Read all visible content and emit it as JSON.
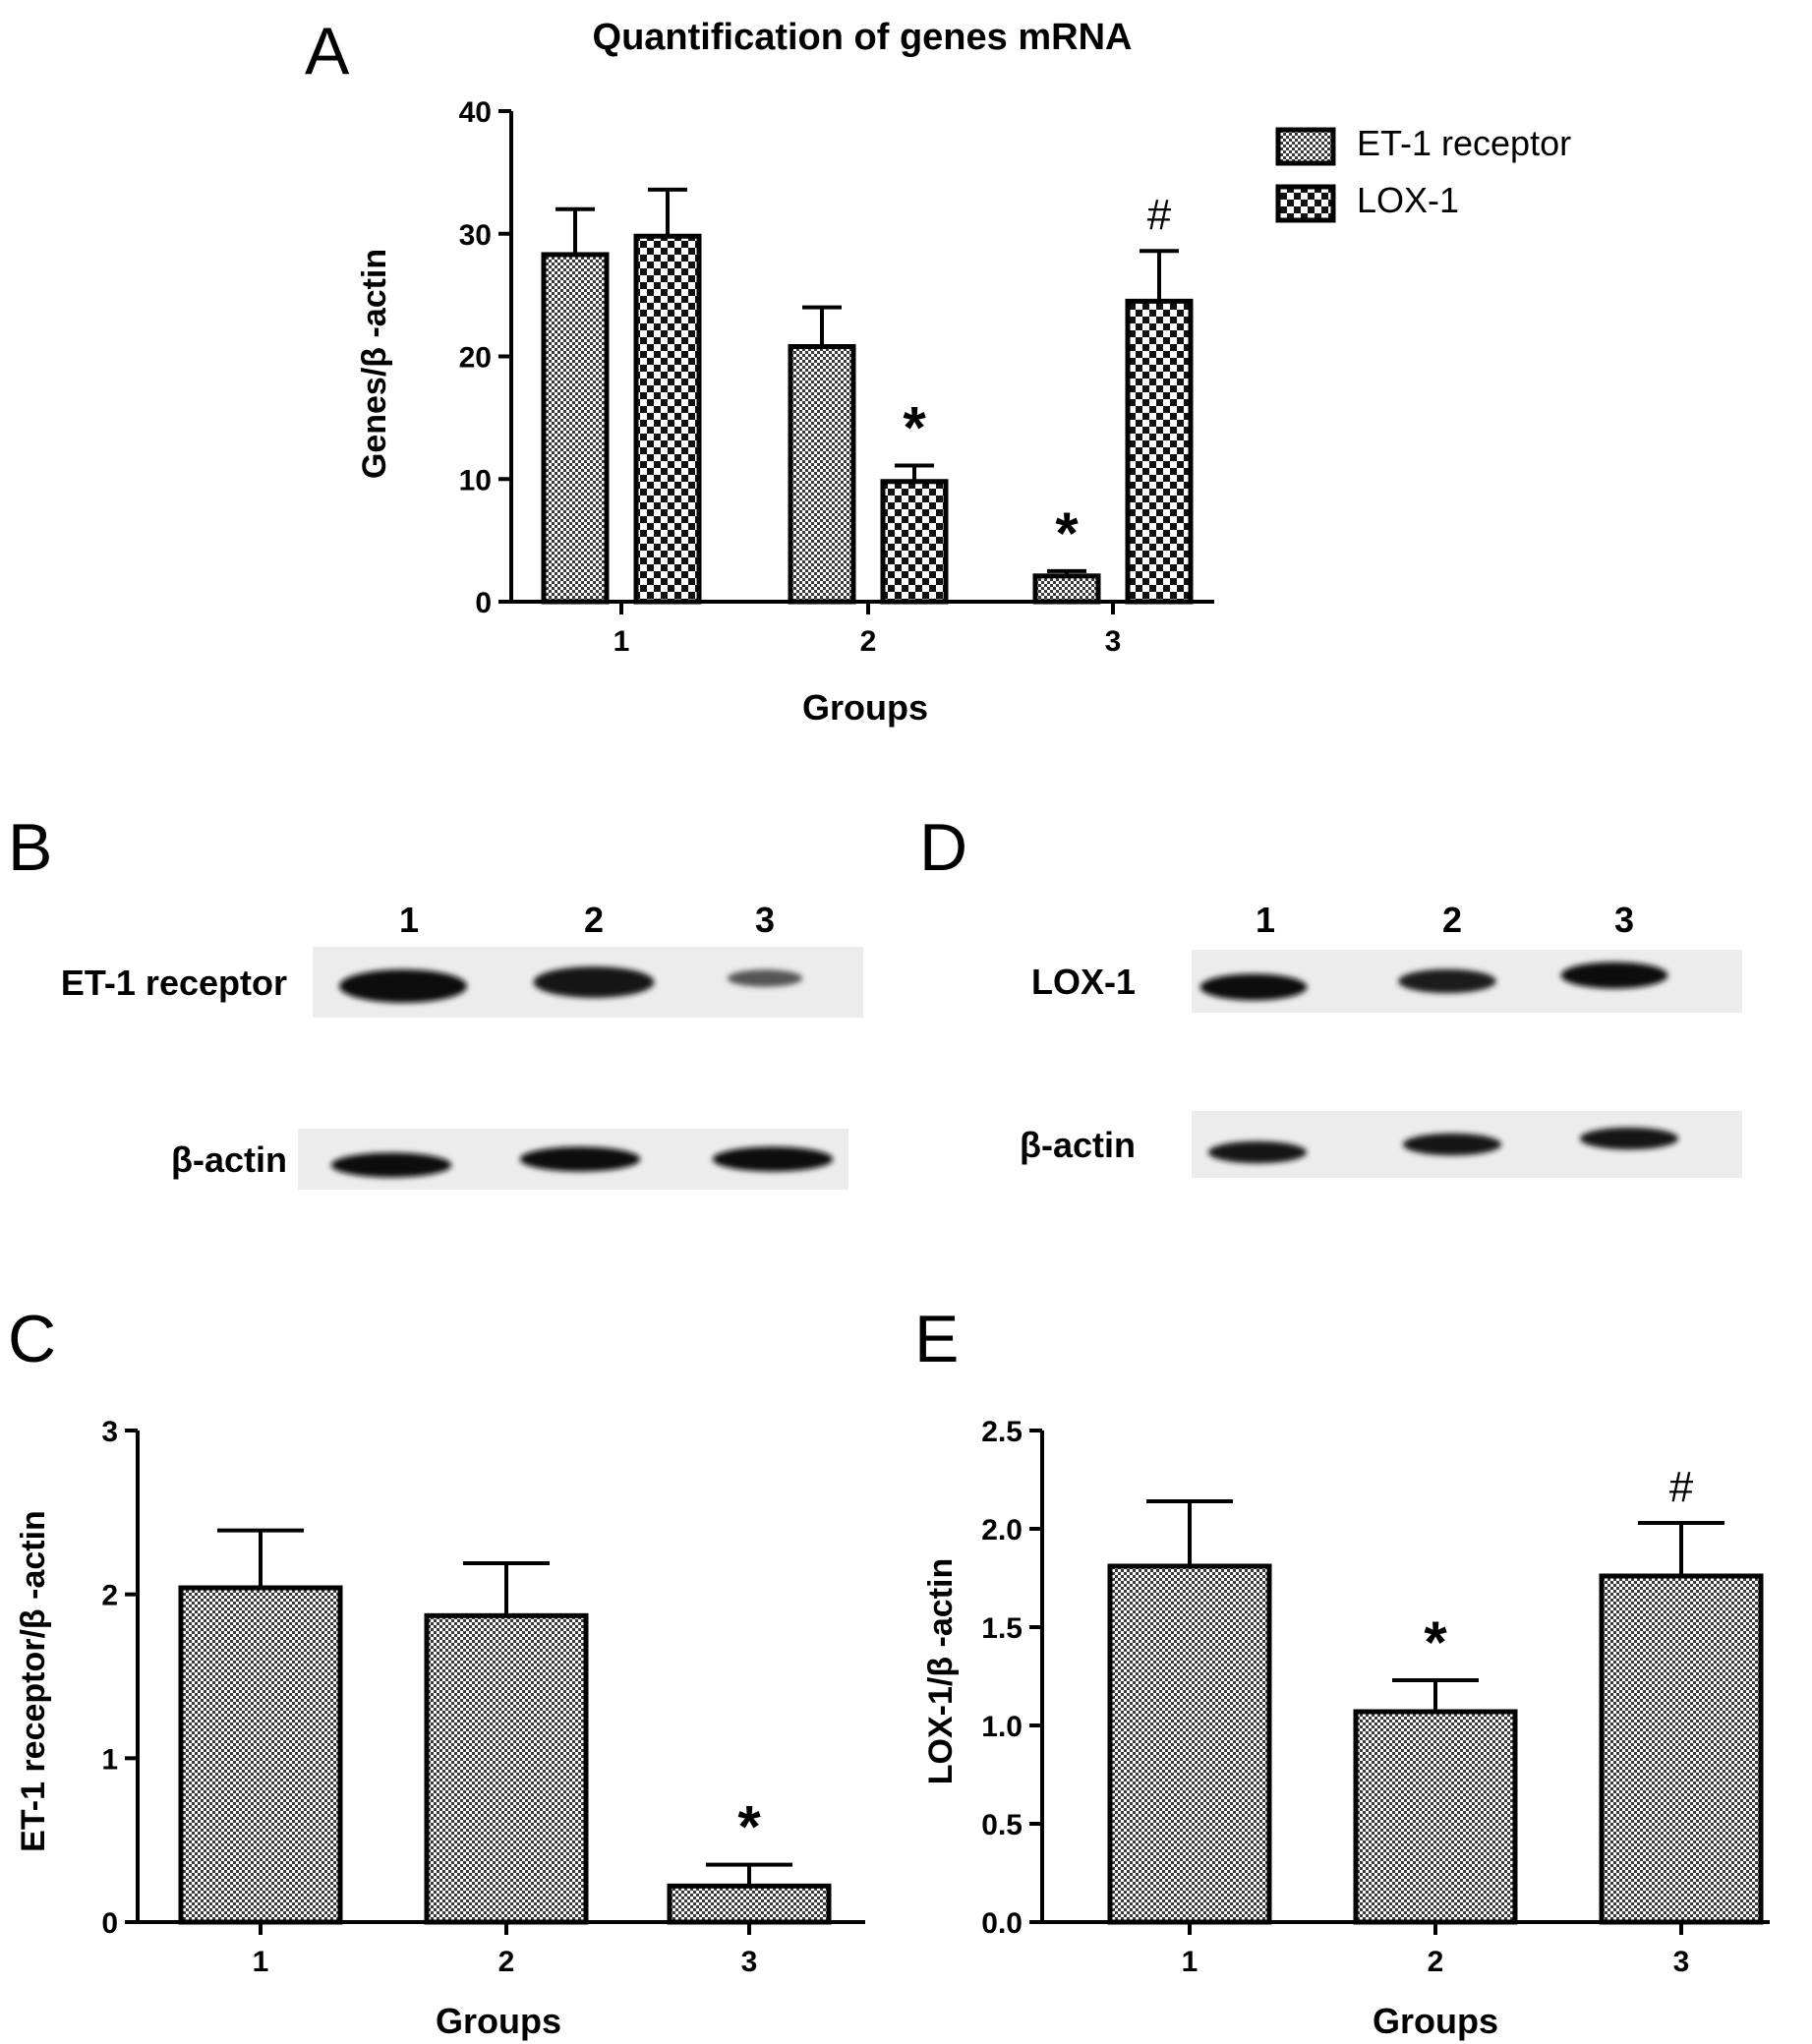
{
  "panels": {
    "A": "A",
    "B": "B",
    "C": "C",
    "D": "D",
    "E": "E"
  },
  "chart_data": [
    {
      "panel": "A",
      "type": "bar",
      "title": "Quantification of genes mRNA",
      "xlabel": "Groups",
      "ylabel": "Genes/β -actin",
      "categories": [
        "1",
        "2",
        "3"
      ],
      "ylim": [
        0,
        40
      ],
      "yticks": [
        "0",
        "10",
        "20",
        "30",
        "40"
      ],
      "legend_position": "top-right",
      "series": [
        {
          "name": "ET-1 receptor",
          "values": [
            28.3,
            20.8,
            2.1
          ],
          "errors": [
            3.7,
            3.2,
            0.4
          ],
          "annotations": [
            "",
            "",
            "*"
          ]
        },
        {
          "name": "LOX-1",
          "values": [
            29.8,
            9.8,
            24.5
          ],
          "errors": [
            3.8,
            1.3,
            4.1
          ],
          "annotations": [
            "",
            "*",
            "#"
          ]
        }
      ]
    },
    {
      "panel": "C",
      "type": "bar",
      "xlabel": "Groups",
      "ylabel": "ET-1 receptor/β -actin",
      "categories": [
        "1",
        "2",
        "3"
      ],
      "ylim": [
        0,
        3
      ],
      "yticks": [
        "0",
        "1",
        "2",
        "3"
      ],
      "series": [
        {
          "values": [
            2.04,
            1.87,
            0.22
          ],
          "errors": [
            0.35,
            0.32,
            0.13
          ],
          "annotations": [
            "",
            "",
            "*"
          ]
        }
      ]
    },
    {
      "panel": "E",
      "type": "bar",
      "xlabel": "Groups",
      "ylabel": "LOX-1/β -actin",
      "categories": [
        "1",
        "2",
        "3"
      ],
      "ylim": [
        0,
        2.5
      ],
      "yticks": [
        "0.0",
        "0.5",
        "1.0",
        "1.5",
        "2.0",
        "2.5"
      ],
      "series": [
        {
          "values": [
            1.81,
            1.07,
            1.76
          ],
          "errors": [
            0.33,
            0.16,
            0.27
          ],
          "annotations": [
            "",
            "*",
            "#"
          ]
        }
      ]
    }
  ],
  "blots": [
    {
      "panel": "B",
      "lanes": [
        "1",
        "2",
        "3"
      ],
      "rows": [
        {
          "label": "ET-1 receptor",
          "intensity": [
            1.0,
            0.9,
            0.25
          ]
        },
        {
          "label": "β-actin",
          "intensity": [
            0.95,
            0.95,
            0.95
          ]
        }
      ]
    },
    {
      "panel": "D",
      "lanes": [
        "1",
        "2",
        "3"
      ],
      "rows": [
        {
          "label": "LOX-1",
          "intensity": [
            0.95,
            0.8,
            0.95
          ]
        },
        {
          "label": "β-actin",
          "intensity": [
            0.9,
            0.9,
            0.9
          ]
        }
      ]
    }
  ]
}
